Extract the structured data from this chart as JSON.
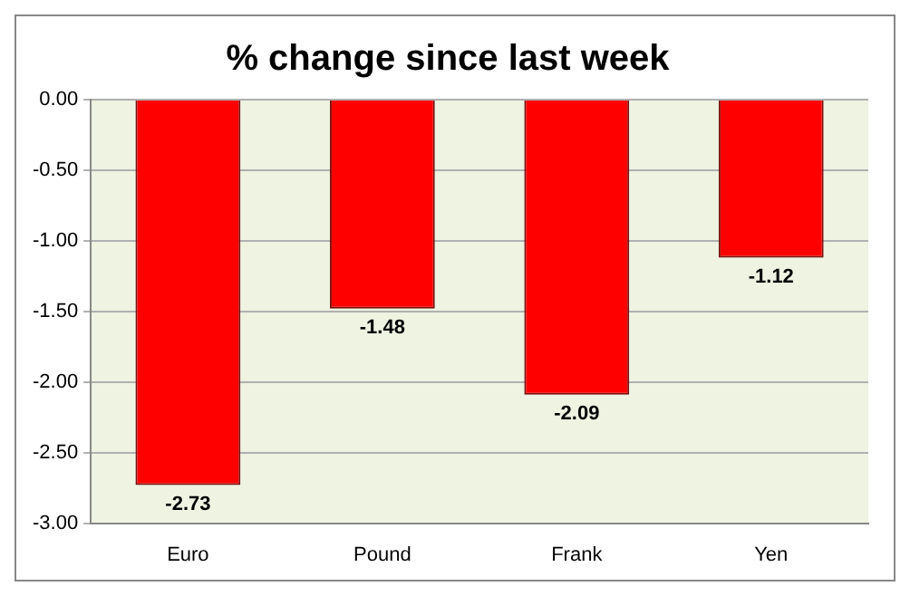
{
  "chart_data": {
    "type": "bar",
    "title": "% change since last week",
    "categories": [
      "Euro",
      "Pound",
      "Frank",
      "Yen"
    ],
    "values": [
      -2.73,
      -1.48,
      -2.09,
      -1.12
    ],
    "color": "#ff0000",
    "ylim": [
      -3,
      0
    ],
    "yticks": [
      {
        "value": 0,
        "label": "0.00"
      },
      {
        "value": -0.5,
        "label": "-0.50"
      },
      {
        "value": -1,
        "label": "-1.00"
      },
      {
        "value": -1.5,
        "label": "-1.50"
      },
      {
        "value": -2,
        "label": "-2.00"
      },
      {
        "value": -2.5,
        "label": "-2.50"
      },
      {
        "value": -3,
        "label": "-3.00"
      }
    ],
    "grid": "y",
    "data_labels": true
  }
}
